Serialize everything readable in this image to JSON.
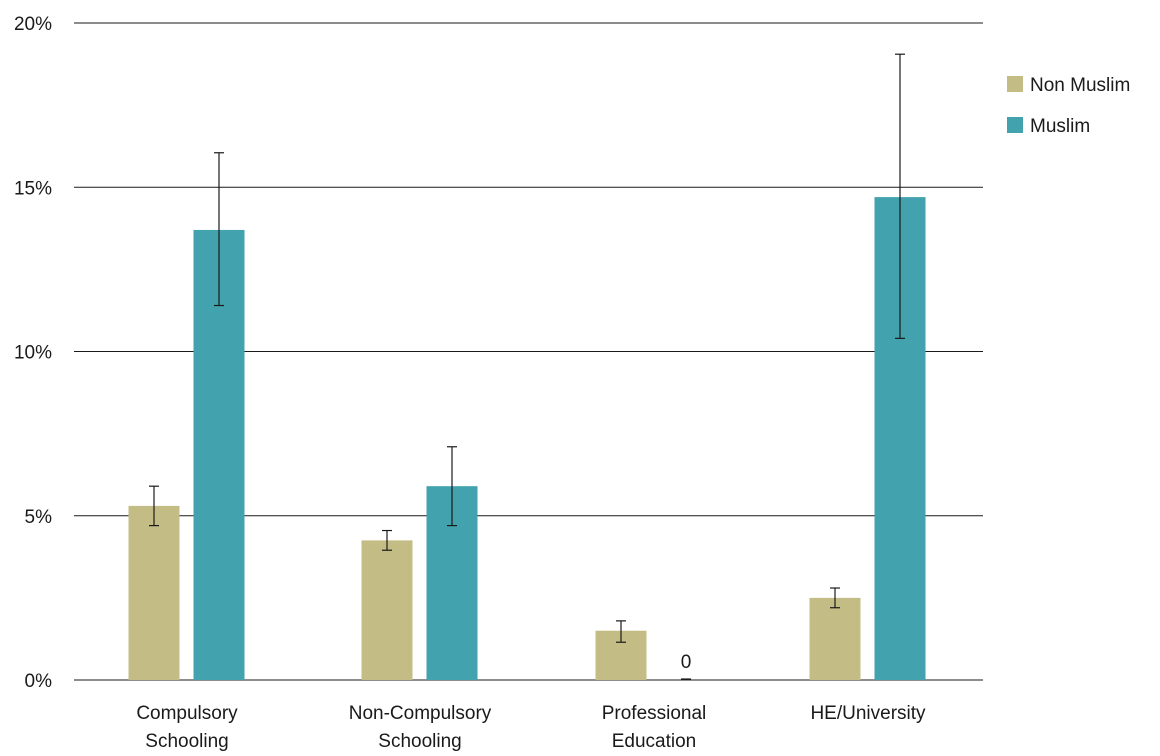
{
  "chart_data": {
    "type": "bar",
    "categories": [
      [
        "Compulsory",
        "Schooling"
      ],
      [
        "Non-Compulsory",
        "Schooling"
      ],
      [
        "Professional",
        "Education"
      ],
      [
        "HE/University"
      ]
    ],
    "series": [
      {
        "name": "Non Muslim",
        "color": "#c4bc85",
        "values": [
          5.3,
          4.25,
          1.5,
          2.5
        ],
        "error_low": [
          4.7,
          3.95,
          1.15,
          2.2
        ],
        "error_high": [
          5.9,
          4.55,
          1.8,
          2.8
        ]
      },
      {
        "name": "Muslim",
        "color": "#42a2ad",
        "values": [
          13.7,
          5.9,
          0,
          14.7
        ],
        "error_low": [
          11.4,
          4.7,
          0,
          10.4
        ],
        "error_high": [
          16.05,
          7.1,
          0,
          19.05
        ]
      }
    ],
    "data_labels": [
      {
        "series": 1,
        "category": 2,
        "text": "0"
      }
    ],
    "yticks": [
      0,
      5,
      10,
      15,
      20
    ],
    "ytick_labels": [
      "0%",
      "5%",
      "10%",
      "15%",
      "20%"
    ],
    "ylim": [
      0,
      20
    ],
    "grid": "horizontal",
    "legend_position": "right",
    "title": "",
    "xlabel": "",
    "ylabel": ""
  }
}
